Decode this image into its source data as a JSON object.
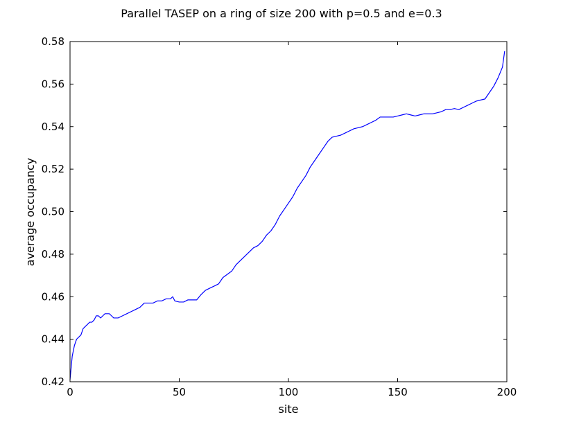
{
  "chart_data": {
    "type": "line",
    "title": "Parallel TASEP on a ring of size 200 with p=0.5 and e=0.3",
    "xlabel": "site",
    "ylabel": "average occupancy",
    "xlim": [
      0,
      200
    ],
    "ylim": [
      0.42,
      0.58
    ],
    "xticks": [
      "0",
      "50",
      "100",
      "150",
      "200"
    ],
    "yticks": [
      "0.42",
      "0.44",
      "0.46",
      "0.48",
      "0.50",
      "0.52",
      "0.54",
      "0.56",
      "0.58"
    ],
    "grid": false,
    "series": [
      {
        "color": "#0000ff",
        "x": [
          0,
          1,
          2,
          3,
          4,
          5,
          6,
          7,
          8,
          9,
          10,
          11,
          12,
          13,
          14,
          15,
          16,
          17,
          18,
          19,
          20,
          22,
          24,
          26,
          28,
          30,
          32,
          34,
          36,
          38,
          40,
          42,
          44,
          46,
          47,
          48,
          50,
          52,
          54,
          56,
          58,
          60,
          62,
          64,
          66,
          68,
          70,
          72,
          74,
          76,
          78,
          80,
          82,
          84,
          86,
          88,
          90,
          92,
          94,
          96,
          98,
          100,
          102,
          104,
          106,
          108,
          110,
          112,
          114,
          116,
          118,
          120,
          122,
          124,
          126,
          128,
          130,
          132,
          134,
          136,
          138,
          140,
          142,
          144,
          146,
          148,
          150,
          152,
          154,
          156,
          158,
          160,
          162,
          164,
          166,
          168,
          170,
          172,
          174,
          176,
          178,
          180,
          182,
          184,
          186,
          188,
          190,
          192,
          194,
          196,
          198,
          199
        ],
        "y": [
          0.421,
          0.432,
          0.437,
          0.44,
          0.441,
          0.442,
          0.445,
          0.446,
          0.447,
          0.448,
          0.448,
          0.449,
          0.451,
          0.451,
          0.45,
          0.451,
          0.452,
          0.452,
          0.452,
          0.451,
          0.45,
          0.45,
          0.451,
          0.452,
          0.453,
          0.454,
          0.455,
          0.457,
          0.457,
          0.457,
          0.458,
          0.458,
          0.459,
          0.459,
          0.46,
          0.458,
          0.4575,
          0.4575,
          0.4585,
          0.4585,
          0.4585,
          0.461,
          0.463,
          0.464,
          0.465,
          0.466,
          0.469,
          0.4705,
          0.472,
          0.475,
          0.477,
          0.479,
          0.481,
          0.483,
          0.484,
          0.486,
          0.489,
          0.491,
          0.494,
          0.498,
          0.501,
          0.504,
          0.507,
          0.511,
          0.514,
          0.517,
          0.521,
          0.524,
          0.527,
          0.53,
          0.533,
          0.535,
          0.5355,
          0.536,
          0.537,
          0.538,
          0.539,
          0.5395,
          0.54,
          0.541,
          0.542,
          0.543,
          0.5445,
          0.5445,
          0.5445,
          0.5445,
          0.545,
          0.5455,
          0.546,
          0.5455,
          0.545,
          0.5455,
          0.546,
          0.546,
          0.546,
          0.5465,
          0.547,
          0.548,
          0.548,
          0.5485,
          0.548,
          0.549,
          0.55,
          0.551,
          0.552,
          0.5525,
          0.553,
          0.556,
          0.559,
          0.563,
          0.568,
          0.5755
        ]
      }
    ]
  }
}
